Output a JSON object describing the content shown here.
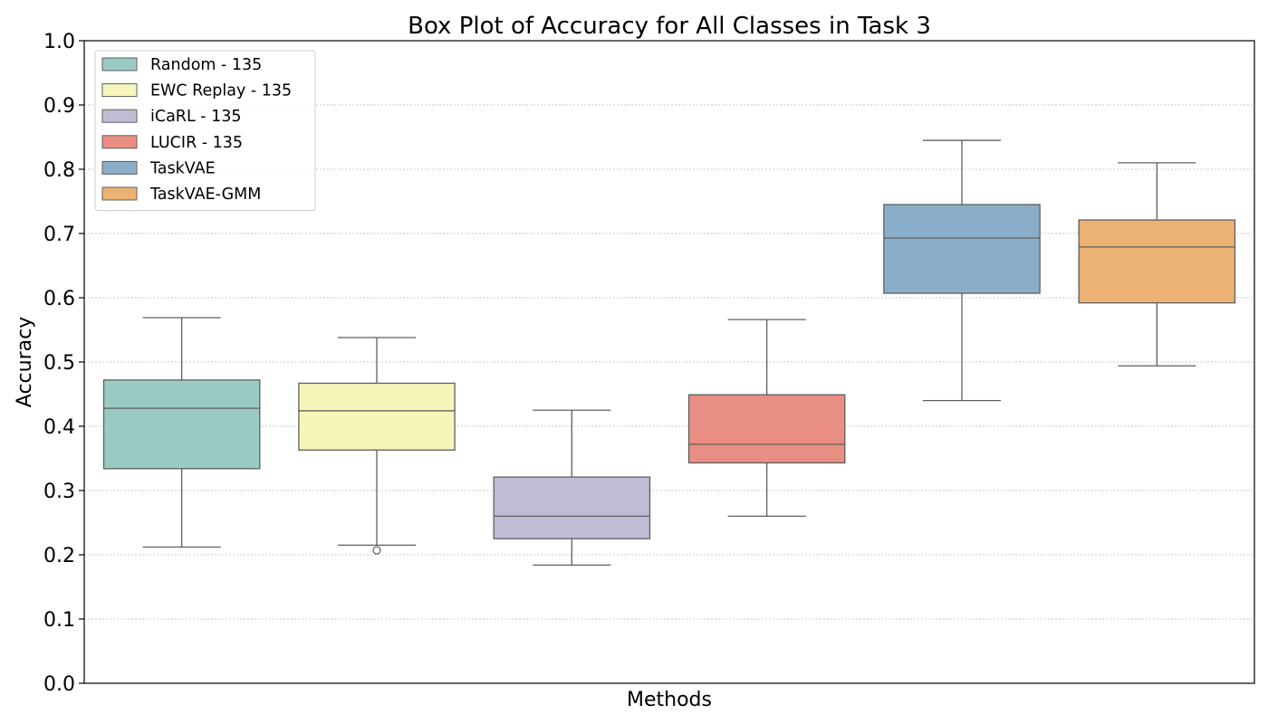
{
  "chart_data": {
    "type": "box",
    "title": "Box Plot of Accuracy for All Classes in Task 3",
    "xlabel": "Methods",
    "ylabel": "Accuracy",
    "ylim": [
      0.0,
      1.0
    ],
    "yticks": [
      "0.0",
      "0.1",
      "0.2",
      "0.3",
      "0.4",
      "0.5",
      "0.6",
      "0.7",
      "0.8",
      "0.9",
      "1.0"
    ],
    "grid": "horizontal dotted",
    "legend_position": "top-left",
    "series": [
      {
        "name": "Random - 135",
        "color": "#99cbc2",
        "whisker_low": 0.212,
        "q1": 0.334,
        "median": 0.428,
        "q3": 0.472,
        "whisker_high": 0.569,
        "outliers": []
      },
      {
        "name": "EWC Replay - 135",
        "color": "#f6f6bb",
        "whisker_low": 0.215,
        "q1": 0.363,
        "median": 0.424,
        "q3": 0.467,
        "whisker_high": 0.538,
        "outliers": [
          0.207
        ]
      },
      {
        "name": "iCaRL - 135",
        "color": "#c1bcd6",
        "whisker_low": 0.184,
        "q1": 0.225,
        "median": 0.26,
        "q3": 0.321,
        "whisker_high": 0.425,
        "outliers": []
      },
      {
        "name": "LUCIR - 135",
        "color": "#e98e82",
        "whisker_low": 0.26,
        "q1": 0.343,
        "median": 0.372,
        "q3": 0.449,
        "whisker_high": 0.566,
        "outliers": []
      },
      {
        "name": "TaskVAE",
        "color": "#8aaec9",
        "whisker_low": 0.44,
        "q1": 0.607,
        "median": 0.693,
        "q3": 0.745,
        "whisker_high": 0.845,
        "outliers": []
      },
      {
        "name": "TaskVAE-GMM",
        "color": "#ebb274",
        "whisker_low": 0.494,
        "q1": 0.592,
        "median": 0.679,
        "q3": 0.721,
        "whisker_high": 0.81,
        "outliers": []
      }
    ]
  }
}
